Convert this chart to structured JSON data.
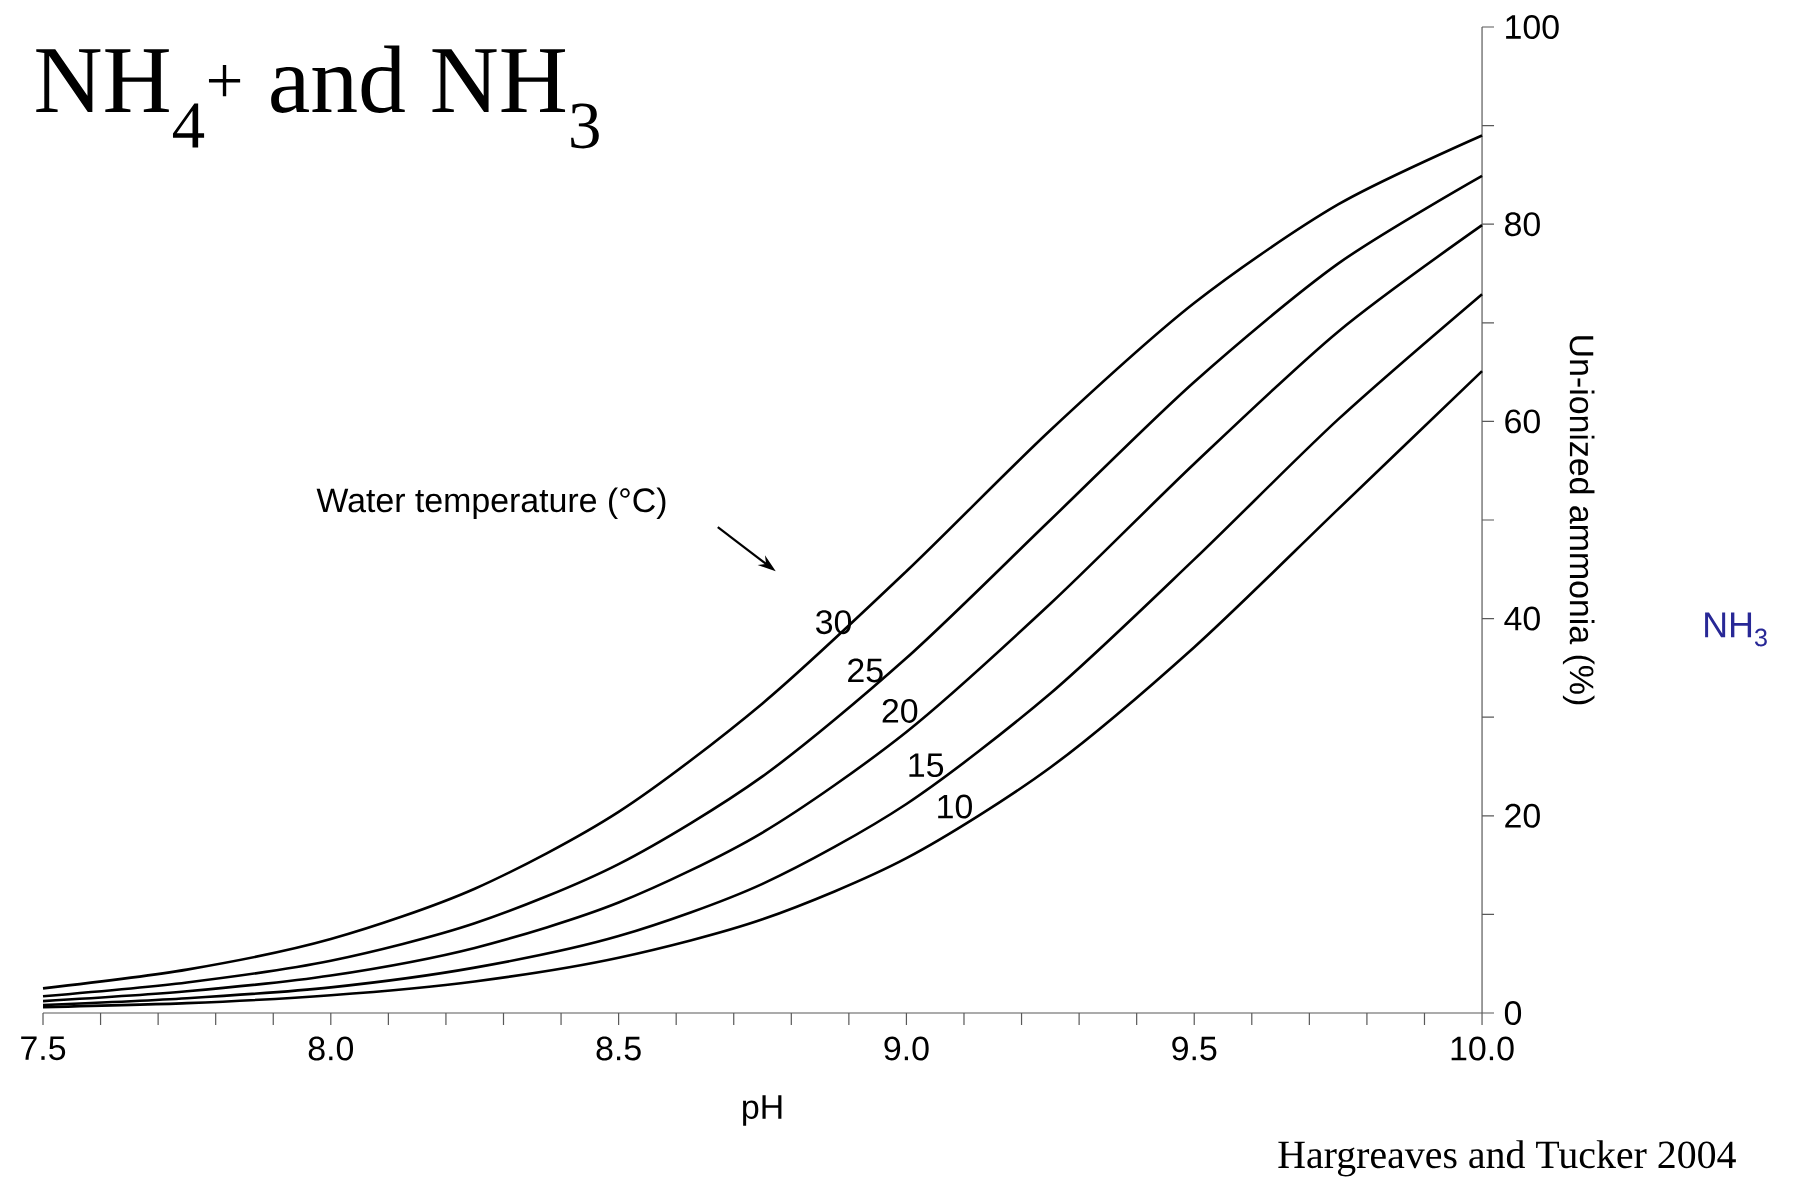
{
  "chart_data": {
    "type": "line",
    "title": "NH$_{4}$$^{+}$ and NH$_{3}$",
    "xlabel": "pH",
    "ylabel": "Un-ionized ammonia (%)",
    "annotations": [
      "Water temperature (°C)",
      "NH$_{3}$",
      "Hargreaves and Tucker 2004"
    ],
    "x": [
      7.5,
      7.75,
      8.0,
      8.25,
      8.5,
      8.75,
      9.0,
      9.25,
      9.5,
      9.75,
      10.0
    ],
    "series": [
      {
        "name": "30",
        "color": "#000000",
        "values": [
          2.5,
          4.4,
          7.5,
          12.6,
          20.4,
          31.4,
          44.8,
          59.1,
          72.0,
          82.0,
          89.0
        ]
      },
      {
        "name": "25",
        "color": "#000000",
        "values": [
          1.7,
          3.1,
          5.3,
          9.1,
          15.1,
          24.0,
          36.0,
          50.0,
          64.0,
          76.0,
          84.9
        ]
      },
      {
        "name": "20",
        "color": "#000000",
        "values": [
          1.2,
          2.2,
          3.8,
          6.6,
          11.2,
          18.3,
          28.5,
          41.5,
          55.7,
          69.1,
          79.9
        ]
      },
      {
        "name": "15",
        "color": "#000000",
        "values": [
          0.8,
          1.5,
          2.6,
          4.6,
          7.8,
          13.1,
          21.2,
          32.4,
          46.0,
          60.2,
          72.9
        ]
      },
      {
        "name": "10",
        "color": "#000000",
        "values": [
          0.6,
          1.0,
          1.8,
          3.2,
          5.6,
          9.5,
          15.7,
          24.9,
          37.1,
          51.1,
          65.1
        ]
      }
    ],
    "xlim": [
      7.5,
      10.0
    ],
    "ylim": [
      0,
      100
    ],
    "xticks": [
      {
        "value": 7.5,
        "label": "7.5"
      },
      {
        "value": 7.6,
        "label": null
      },
      {
        "value": 7.7,
        "label": null
      },
      {
        "value": 7.8,
        "label": null
      },
      {
        "value": 7.9,
        "label": null
      },
      {
        "value": 8.0,
        "label": "8.0"
      },
      {
        "value": 8.1,
        "label": null
      },
      {
        "value": 8.2,
        "label": null
      },
      {
        "value": 8.3,
        "label": null
      },
      {
        "value": 8.4,
        "label": null
      },
      {
        "value": 8.5,
        "label": "8.5"
      },
      {
        "value": 8.6,
        "label": null
      },
      {
        "value": 8.7,
        "label": null
      },
      {
        "value": 8.8,
        "label": null
      },
      {
        "value": 8.9,
        "label": null
      },
      {
        "value": 9.0,
        "label": "9.0"
      },
      {
        "value": 9.1,
        "label": null
      },
      {
        "value": 9.2,
        "label": null
      },
      {
        "value": 9.3,
        "label": null
      },
      {
        "value": 9.4,
        "label": null
      },
      {
        "value": 9.5,
        "label": "9.5"
      },
      {
        "value": 9.6,
        "label": null
      },
      {
        "value": 9.7,
        "label": null
      },
      {
        "value": 9.8,
        "label": null
      },
      {
        "value": 9.9,
        "label": null
      },
      {
        "value": 10.0,
        "label": "10.0"
      }
    ],
    "yticks": [
      0,
      {
        "value": 10,
        "label": null
      },
      20,
      {
        "value": 30,
        "label": null
      },
      40,
      {
        "value": 50,
        "label": null
      },
      60,
      {
        "value": 70,
        "label": null
      },
      80,
      {
        "value": 90,
        "label": null
      },
      100
    ],
    "grid": false,
    "legend": false,
    "marker": "none",
    "line_style": "solid"
  }
}
